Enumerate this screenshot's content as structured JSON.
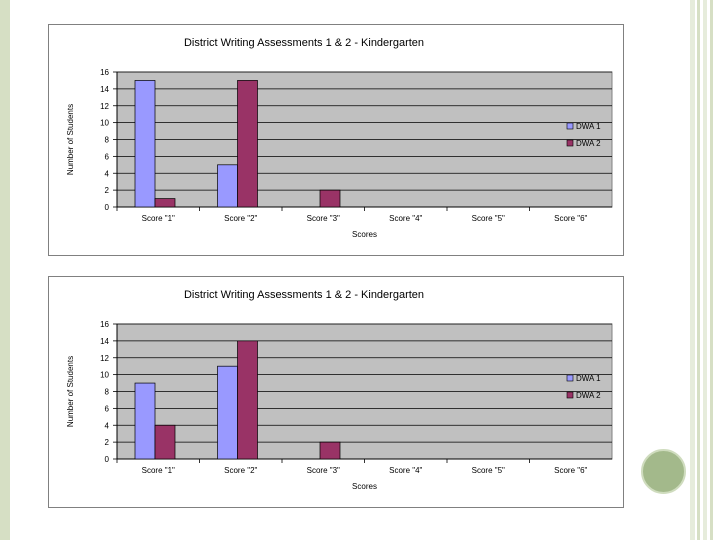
{
  "colors": {
    "dwa1": "#9999ff",
    "dwa2": "#993366",
    "plot_bg": "#c0c0c0",
    "gridline": "#000000",
    "rail": "#d6dfc4",
    "accent_circle": "#a3b98b"
  },
  "chart_data": [
    {
      "type": "bar",
      "title": "District Writing Assessments 1 & 2 - Kindergarten",
      "xlabel": "Scores",
      "ylabel": "Number of Students",
      "categories": [
        "Score \"1\"",
        "Score \"2\"",
        "Score \"3\"",
        "Score \"4\"",
        "Score \"5\"",
        "Score \"6\""
      ],
      "series": [
        {
          "name": "DWA 1",
          "values": [
            15,
            5,
            0,
            0,
            0,
            0
          ]
        },
        {
          "name": "DWA 2",
          "values": [
            1,
            15,
            2,
            0,
            0,
            0
          ]
        }
      ],
      "ylim": [
        0,
        16
      ],
      "yticks": [
        "0",
        "2",
        "4",
        "6",
        "8",
        "10",
        "12",
        "14",
        "16"
      ],
      "grid": true,
      "legend": "right"
    },
    {
      "type": "bar",
      "title": "District Writing Assessments 1 & 2 - Kindergarten",
      "xlabel": "Scores",
      "ylabel": "Number of Students",
      "categories": [
        "Score \"1\"",
        "Score \"2\"",
        "Score \"3\"",
        "Score \"4\"",
        "Score \"5\"",
        "Score \"6\""
      ],
      "series": [
        {
          "name": "DWA 1",
          "values": [
            9,
            11,
            0,
            0,
            0,
            0
          ]
        },
        {
          "name": "DWA 2",
          "values": [
            4,
            14,
            2,
            0,
            0,
            0
          ]
        }
      ],
      "ylim": [
        0,
        16
      ],
      "yticks": [
        "0",
        "2",
        "4",
        "6",
        "8",
        "10",
        "12",
        "14",
        "16"
      ],
      "grid": true,
      "legend": "right"
    }
  ]
}
